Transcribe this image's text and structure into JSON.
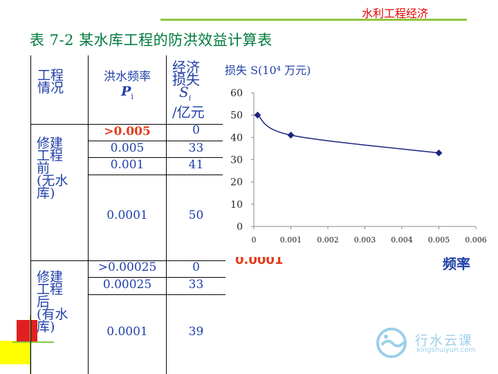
{
  "header": {
    "course_title": "水利工程经济"
  },
  "slide": {
    "title": "表 7-2    某水库工程的防洪效益计算表"
  },
  "table": {
    "headers": {
      "condition": [
        "工程",
        "情况"
      ],
      "frequency": "洪水频率",
      "frequency_symbol": "P",
      "frequency_sub": "i",
      "loss": [
        "经济",
        "损失",
        "S",
        "/亿元"
      ],
      "loss_sub": "i"
    },
    "groups": [
      {
        "label": [
          "修建",
          "工程",
          "前",
          "(无水",
          "库)"
        ]
      },
      {
        "label": [
          "修建",
          "工程",
          "后",
          "(有水",
          "库)"
        ]
      }
    ],
    "rows": [
      {
        "frequency": ">0.005",
        "loss": "0"
      },
      {
        "frequency": "0.005",
        "loss": "33"
      },
      {
        "frequency": "0.001",
        "loss": "41"
      },
      {
        "frequency": "0.0001",
        "loss": "50"
      },
      {
        "frequency": ">0.00025",
        "loss": "0"
      },
      {
        "frequency": "0.00025",
        "loss": "33"
      },
      {
        "frequency": "0.0001",
        "loss": "39"
      }
    ]
  },
  "chart_data": {
    "type": "line",
    "title": "损失 S(10⁴ 万元)",
    "x": [
      0.0001,
      0.001,
      0.005
    ],
    "y": [
      50,
      41,
      33
    ],
    "xlim": [
      0,
      0.006
    ],
    "ylim": [
      0,
      60
    ],
    "xticks": [
      "0",
      "0.001",
      "0.002",
      "0.003",
      "0.004",
      "0.005",
      "0.006"
    ],
    "yticks": [
      "0",
      "10",
      "20",
      "30",
      "40",
      "50",
      "60"
    ],
    "line_color": "#1a237e"
  },
  "behind_chart": {
    "red_text": "0.0001",
    "blue_text": "频率"
  },
  "logo": {
    "name": "行水云课",
    "url": "xingshuiyun.com"
  },
  "colors": {
    "header_red": "#e60000",
    "title_green": "#007a3d",
    "table_text": "#1f3fa8",
    "decor_red": "#e02020",
    "decor_yellow": "#ffff00",
    "header_line": "#8dc63f"
  }
}
